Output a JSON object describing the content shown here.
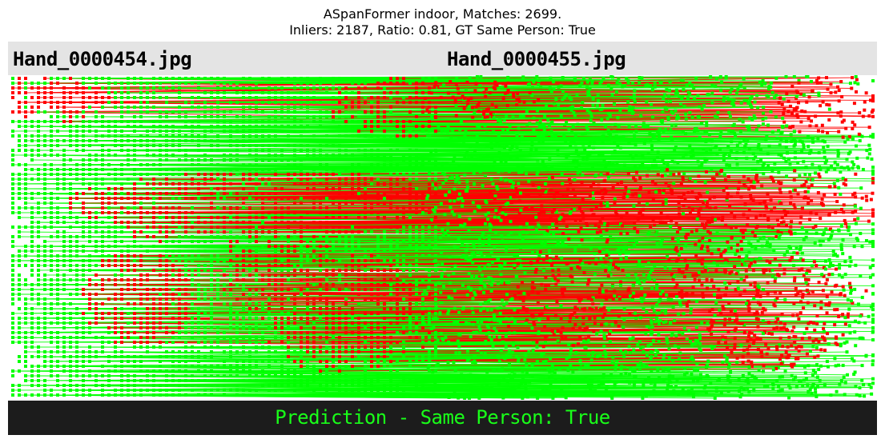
{
  "figure": {
    "title_line_1": "ASpanFormer indoor, Matches: 2699.",
    "title_line_2": "Inliers: 2187, Ratio: 0.81, GT Same Person: True",
    "left_image_name": "Hand_0000454.jpg",
    "right_image_name": "Hand_0000455.jpg",
    "prediction_text": "Prediction - Same Person: True"
  },
  "colors": {
    "inlier": "#00ff00",
    "outlier": "#ff0000",
    "prediction_text": "#19ff19",
    "header_background": "#e4e4e4",
    "footer_background": "#1c1c1c"
  }
}
